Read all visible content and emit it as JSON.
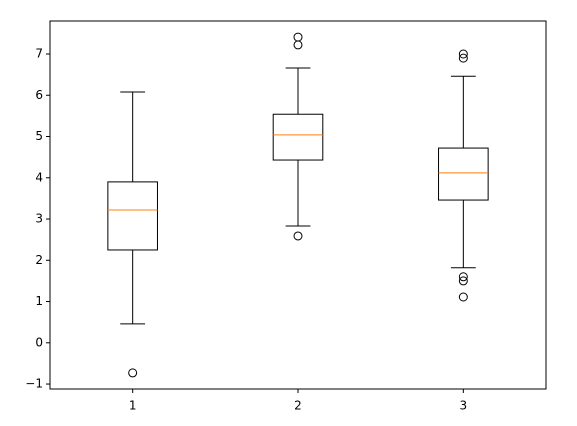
{
  "chart_data": {
    "type": "box",
    "positions": [
      1,
      2,
      3
    ],
    "boxes": [
      {
        "whislo": 0.46,
        "q1": 2.25,
        "med": 3.22,
        "q3": 3.9,
        "whishi": 6.08,
        "fliers": [
          -0.73
        ]
      },
      {
        "whislo": 2.83,
        "q1": 4.43,
        "med": 5.04,
        "q3": 5.54,
        "whishi": 6.66,
        "fliers": [
          7.41,
          7.22,
          2.59
        ]
      },
      {
        "whislo": 1.82,
        "q1": 3.46,
        "med": 4.12,
        "q3": 4.72,
        "whishi": 6.46,
        "fliers": [
          7.0,
          6.9,
          1.6,
          1.5,
          1.11
        ]
      }
    ],
    "color": "#000000",
    "median_color": "#ff7f0e",
    "xlim": [
      0.5,
      3.5
    ],
    "xticks": [
      1,
      2,
      3
    ],
    "ylim": [
      -1.12,
      7.8
    ],
    "yticks": [
      {
        "value": -1,
        "label": "−1"
      },
      0,
      1,
      2,
      3,
      4,
      5,
      6,
      7
    ],
    "grid": false
  }
}
